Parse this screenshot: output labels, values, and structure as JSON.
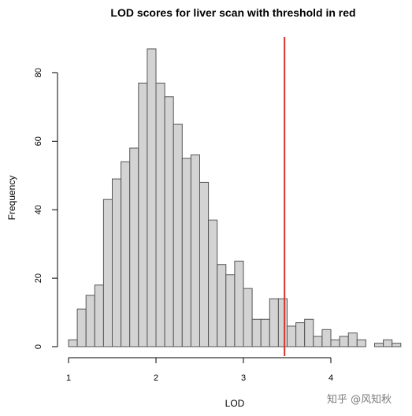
{
  "chart_data": {
    "type": "bar",
    "title": "LOD scores for liver scan with threshold in red",
    "xlabel": "LOD",
    "ylabel": "Frequency",
    "x_ticks": [
      "1",
      "2",
      "3",
      "4"
    ],
    "y_ticks": [
      "0",
      "20",
      "40",
      "60",
      "80"
    ],
    "xlim": [
      1,
      4.8
    ],
    "ylim": [
      0,
      90
    ],
    "bin_width": 0.1,
    "bins": [
      {
        "start": 1.0,
        "end": 1.1,
        "count": 2
      },
      {
        "start": 1.1,
        "end": 1.2,
        "count": 11
      },
      {
        "start": 1.2,
        "end": 1.3,
        "count": 15
      },
      {
        "start": 1.3,
        "end": 1.4,
        "count": 18
      },
      {
        "start": 1.4,
        "end": 1.5,
        "count": 43
      },
      {
        "start": 1.5,
        "end": 1.6,
        "count": 49
      },
      {
        "start": 1.6,
        "end": 1.7,
        "count": 54
      },
      {
        "start": 1.7,
        "end": 1.8,
        "count": 58
      },
      {
        "start": 1.8,
        "end": 1.9,
        "count": 77
      },
      {
        "start": 1.9,
        "end": 2.0,
        "count": 87
      },
      {
        "start": 2.0,
        "end": 2.1,
        "count": 77
      },
      {
        "start": 2.1,
        "end": 2.2,
        "count": 73
      },
      {
        "start": 2.2,
        "end": 2.3,
        "count": 65
      },
      {
        "start": 2.3,
        "end": 2.4,
        "count": 55
      },
      {
        "start": 2.4,
        "end": 2.5,
        "count": 56
      },
      {
        "start": 2.5,
        "end": 2.6,
        "count": 48
      },
      {
        "start": 2.6,
        "end": 2.7,
        "count": 37
      },
      {
        "start": 2.7,
        "end": 2.8,
        "count": 24
      },
      {
        "start": 2.8,
        "end": 2.9,
        "count": 21
      },
      {
        "start": 2.9,
        "end": 3.0,
        "count": 25
      },
      {
        "start": 3.0,
        "end": 3.1,
        "count": 17
      },
      {
        "start": 3.1,
        "end": 3.2,
        "count": 8
      },
      {
        "start": 3.2,
        "end": 3.3,
        "count": 8
      },
      {
        "start": 3.3,
        "end": 3.4,
        "count": 14
      },
      {
        "start": 3.4,
        "end": 3.5,
        "count": 14
      },
      {
        "start": 3.5,
        "end": 3.6,
        "count": 6
      },
      {
        "start": 3.6,
        "end": 3.7,
        "count": 7
      },
      {
        "start": 3.7,
        "end": 3.8,
        "count": 8
      },
      {
        "start": 3.8,
        "end": 3.9,
        "count": 3
      },
      {
        "start": 3.9,
        "end": 4.0,
        "count": 5
      },
      {
        "start": 4.0,
        "end": 4.1,
        "count": 2
      },
      {
        "start": 4.1,
        "end": 4.2,
        "count": 3
      },
      {
        "start": 4.2,
        "end": 4.3,
        "count": 4
      },
      {
        "start": 4.3,
        "end": 4.4,
        "count": 2
      },
      {
        "start": 4.4,
        "end": 4.5,
        "count": 0
      },
      {
        "start": 4.5,
        "end": 4.6,
        "count": 1
      },
      {
        "start": 4.6,
        "end": 4.7,
        "count": 2
      },
      {
        "start": 4.7,
        "end": 4.8,
        "count": 1
      }
    ],
    "threshold": 3.47,
    "grid": false,
    "legend": "none"
  },
  "colors": {
    "bar_fill": "#d3d3d3",
    "bar_stroke": "#555555",
    "threshold_line": "#d9332b",
    "axis": "#000000",
    "watermark": "#7a7a7a"
  },
  "watermark": {
    "text": "知乎 @风知秋"
  }
}
